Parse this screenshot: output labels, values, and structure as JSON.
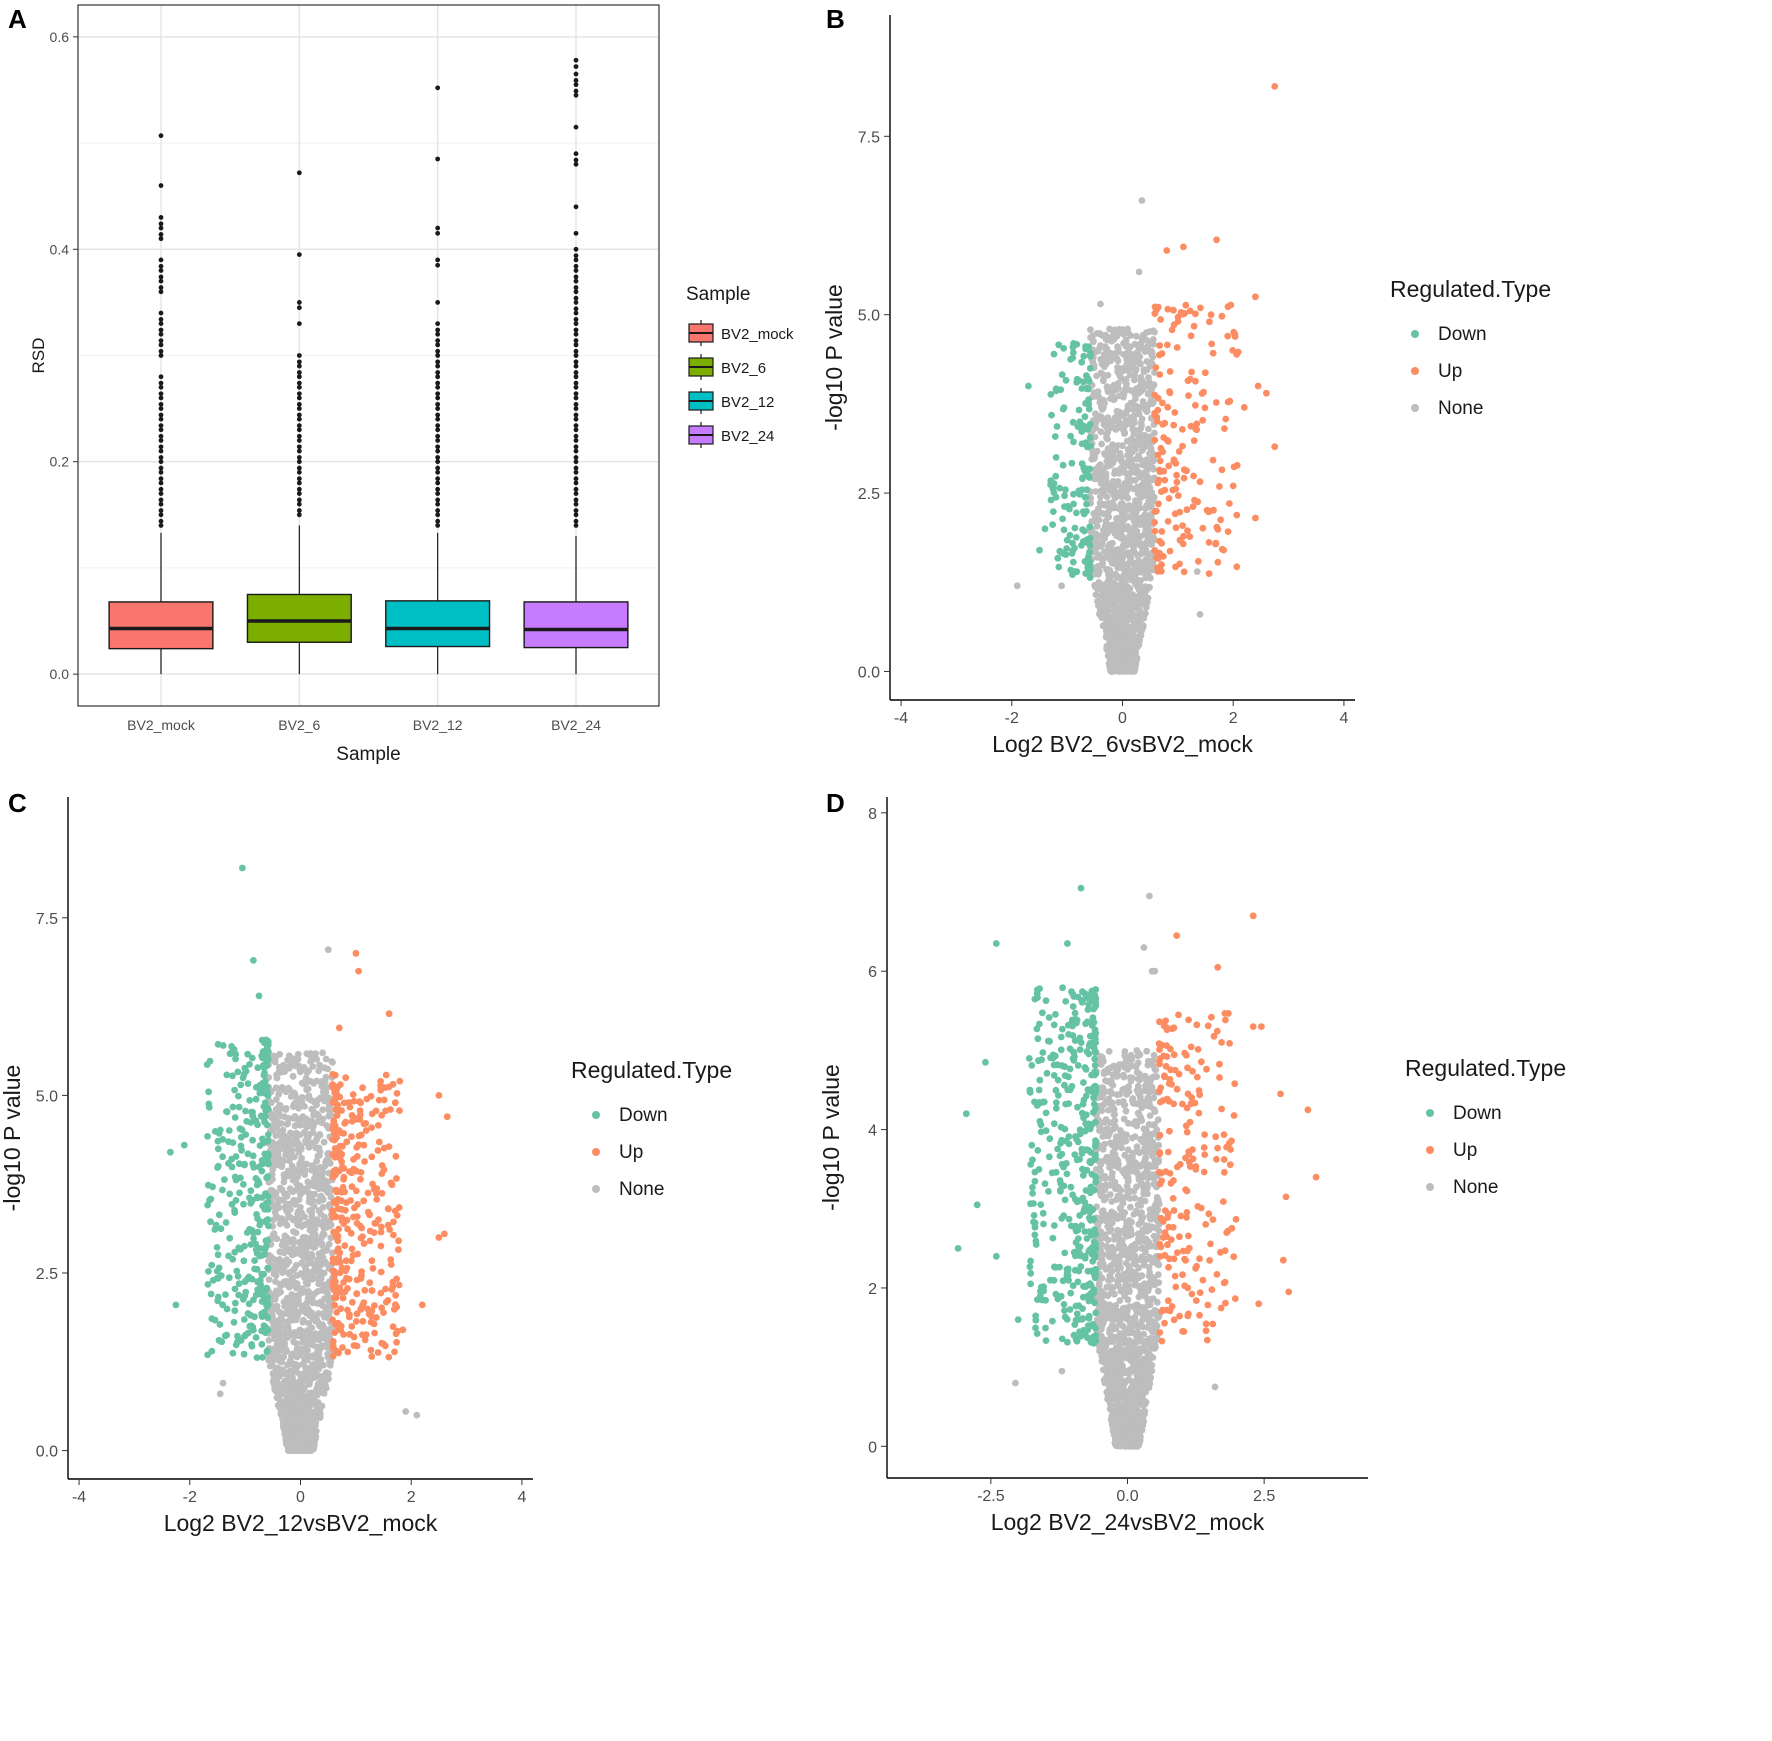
{
  "colors": {
    "down": "#66c2a5",
    "up": "#fc8d62",
    "none": "#bdbdbd",
    "BV2_mock": "#f8766d",
    "BV2_6": "#7cae00",
    "BV2_12": "#00bfc4",
    "BV2_24": "#c77cff"
  },
  "chart_data": [
    {
      "panel": "A",
      "type": "box",
      "xlabel": "Sample",
      "ylabel": "RSD",
      "categories": [
        "BV2_mock",
        "BV2_6",
        "BV2_12",
        "BV2_24"
      ],
      "ylim": [
        -0.03,
        0.63
      ],
      "yticks": [
        "0.0",
        "0.2",
        "0.4",
        "0.6"
      ],
      "grid": true,
      "legend": {
        "title": "Sample",
        "position": "right",
        "items": [
          "BV2_mock",
          "BV2_6",
          "BV2_12",
          "BV2_24"
        ]
      },
      "boxes": [
        {
          "name": "BV2_mock",
          "q1": 0.024,
          "median": 0.043,
          "q3": 0.068,
          "whisker_low": 0.0,
          "whisker_high": 0.133,
          "outliers": [
            0.14,
            0.15,
            0.16,
            0.17,
            0.18,
            0.19,
            0.2,
            0.21,
            0.22,
            0.23,
            0.24,
            0.25,
            0.26,
            0.27,
            0.28,
            0.3,
            0.31,
            0.32,
            0.33,
            0.34,
            0.36,
            0.37,
            0.38,
            0.39,
            0.41,
            0.42,
            0.43,
            0.46,
            0.507
          ]
        },
        {
          "name": "BV2_6",
          "q1": 0.03,
          "median": 0.05,
          "q3": 0.075,
          "whisker_low": 0.0,
          "whisker_high": 0.14,
          "outliers": [
            0.15,
            0.16,
            0.17,
            0.18,
            0.19,
            0.2,
            0.21,
            0.22,
            0.23,
            0.24,
            0.25,
            0.26,
            0.27,
            0.28,
            0.29,
            0.3,
            0.33,
            0.345,
            0.35,
            0.395,
            0.472
          ]
        },
        {
          "name": "BV2_12",
          "q1": 0.026,
          "median": 0.043,
          "q3": 0.069,
          "whisker_low": 0.0,
          "whisker_high": 0.133,
          "outliers": [
            0.14,
            0.15,
            0.16,
            0.17,
            0.18,
            0.19,
            0.2,
            0.21,
            0.22,
            0.23,
            0.24,
            0.25,
            0.26,
            0.27,
            0.28,
            0.29,
            0.3,
            0.31,
            0.32,
            0.33,
            0.35,
            0.385,
            0.39,
            0.415,
            0.42,
            0.485,
            0.552
          ]
        },
        {
          "name": "BV2_24",
          "q1": 0.025,
          "median": 0.042,
          "q3": 0.068,
          "whisker_low": 0.0,
          "whisker_high": 0.13,
          "outliers": [
            0.14,
            0.15,
            0.16,
            0.17,
            0.18,
            0.19,
            0.2,
            0.21,
            0.22,
            0.23,
            0.24,
            0.25,
            0.26,
            0.27,
            0.28,
            0.29,
            0.3,
            0.31,
            0.32,
            0.33,
            0.34,
            0.35,
            0.36,
            0.37,
            0.38,
            0.39,
            0.4,
            0.415,
            0.44,
            0.48,
            0.49,
            0.515,
            0.545,
            0.555,
            0.565,
            0.572,
            0.578
          ]
        }
      ]
    },
    {
      "panel": "B",
      "type": "scatter",
      "xlabel": "Log2 BV2_6vsBV2_mock",
      "ylabel": "-log10 P value",
      "xlim": [
        -4.2,
        4.2
      ],
      "ylim": [
        -0.4,
        9.2
      ],
      "xticks": [
        -4,
        -2,
        0,
        2,
        4
      ],
      "xtick_labels": [
        "-4",
        "-2",
        "0",
        "2",
        "4"
      ],
      "yticks": [
        0,
        2.5,
        5,
        7.5
      ],
      "ytick_labels": [
        "0.0",
        "2.5",
        "5.0",
        "7.5"
      ],
      "legend": {
        "title": "Regulated.Type",
        "position": "right",
        "items": [
          "Down",
          "Up",
          "None"
        ]
      },
      "cloud": {
        "seed": 11,
        "none_n": 1500,
        "none_xspread": 0.55,
        "none_ymax": 4.8,
        "threshold": 0.58,
        "down_n": 150,
        "down_xmax": 1.3,
        "down_ymax": 4.6,
        "up_n": 170,
        "up_xmax": 2.1,
        "up_ymax": 5.2
      },
      "series": [
        {
          "name": "Down",
          "points": [
            [
              -1.7,
              4.0
            ],
            [
              -1.4,
              2.0
            ],
            [
              -1.5,
              1.7
            ],
            [
              -1.2,
              3.0
            ]
          ]
        },
        {
          "name": "Up",
          "points": [
            [
              2.75,
              8.2
            ],
            [
              1.7,
              6.05
            ],
            [
              1.1,
              5.95
            ],
            [
              0.8,
              5.9
            ],
            [
              2.4,
              5.25
            ],
            [
              1.6,
              5.0
            ],
            [
              1.9,
              4.7
            ],
            [
              2.75,
              3.15
            ],
            [
              2.45,
              4.0
            ],
            [
              2.6,
              3.9
            ],
            [
              2.2,
              3.7
            ],
            [
              2.4,
              2.15
            ],
            [
              2.0,
              2.6
            ],
            [
              1.3,
              2.4
            ]
          ]
        },
        {
          "name": "None",
          "points": [
            [
              0.35,
              6.6
            ],
            [
              0.3,
              5.6
            ],
            [
              -0.4,
              5.15
            ],
            [
              1.4,
              0.8
            ],
            [
              1.35,
              1.4
            ],
            [
              -1.1,
              1.2
            ],
            [
              -1.9,
              1.2
            ]
          ]
        }
      ]
    },
    {
      "panel": "C",
      "type": "scatter",
      "xlabel": "Log2 BV2_12vsBV2_mock",
      "ylabel": "-log10 P value",
      "xlim": [
        -4.2,
        4.2
      ],
      "ylim": [
        -0.4,
        9.2
      ],
      "xticks": [
        -4,
        -2,
        0,
        2,
        4
      ],
      "xtick_labels": [
        "-4",
        "-2",
        "0",
        "2",
        "4"
      ],
      "yticks": [
        0,
        2.5,
        5,
        7.5
      ],
      "ytick_labels": [
        "0.0",
        "2.5",
        "5.0",
        "7.5"
      ],
      "legend": {
        "title": "Regulated.Type",
        "position": "right",
        "items": [
          "Down",
          "Up",
          "None"
        ]
      },
      "cloud": {
        "seed": 23,
        "none_n": 1600,
        "none_xspread": 0.6,
        "none_ymax": 5.6,
        "threshold": 0.58,
        "down_n": 320,
        "down_xmax": 1.7,
        "down_ymax": 5.8,
        "up_n": 340,
        "up_xmax": 1.8,
        "up_ymax": 5.3
      },
      "series": [
        {
          "name": "Down",
          "points": [
            [
              -1.05,
              8.2
            ],
            [
              -0.85,
              6.9
            ],
            [
              -0.75,
              6.4
            ],
            [
              -2.35,
              4.2
            ],
            [
              -2.1,
              4.3
            ],
            [
              -2.25,
              2.05
            ],
            [
              -1.6,
              1.4
            ]
          ]
        },
        {
          "name": "Up",
          "points": [
            [
              1.0,
              7.0
            ],
            [
              1.05,
              6.75
            ],
            [
              1.6,
              6.15
            ],
            [
              0.7,
              5.95
            ],
            [
              2.5,
              5.0
            ],
            [
              2.65,
              4.7
            ],
            [
              2.6,
              3.05
            ],
            [
              2.5,
              3.0
            ],
            [
              2.2,
              2.05
            ],
            [
              1.85,
              1.7
            ],
            [
              1.5,
              1.5
            ]
          ]
        },
        {
          "name": "None",
          "points": [
            [
              0.5,
              7.05
            ],
            [
              0.4,
              5.6
            ],
            [
              0.35,
              5.4
            ],
            [
              -1.4,
              0.95
            ],
            [
              -1.45,
              0.8
            ],
            [
              1.9,
              0.55
            ],
            [
              2.1,
              0.5
            ]
          ]
        }
      ]
    },
    {
      "panel": "D",
      "type": "scatter",
      "xlabel": "Log2 BV2_24vsBV2_mock",
      "ylabel": "-log10 P value",
      "xlim": [
        -4.4,
        4.4
      ],
      "ylim": [
        -0.4,
        8.2
      ],
      "xticks": [
        -2.5,
        0,
        2.5
      ],
      "xtick_labels": [
        "-2.5",
        "0.0",
        "2.5"
      ],
      "yticks": [
        0,
        2,
        4,
        6,
        8
      ],
      "ytick_labels": [
        "0",
        "2",
        "4",
        "6",
        "8"
      ],
      "legend": {
        "title": "Regulated.Type",
        "position": "right",
        "items": [
          "Down",
          "Up",
          "None"
        ]
      },
      "cloud": {
        "seed": 37,
        "none_n": 1600,
        "none_xspread": 0.55,
        "none_ymax": 5.0,
        "threshold": 0.58,
        "down_n": 420,
        "down_xmax": 1.8,
        "down_ymax": 5.8,
        "up_n": 200,
        "up_xmax": 2.0,
        "up_ymax": 5.5
      },
      "series": [
        {
          "name": "Down",
          "points": [
            [
              -0.85,
              7.05
            ],
            [
              -2.4,
              6.35
            ],
            [
              -1.1,
              6.35
            ],
            [
              -2.6,
              4.85
            ],
            [
              -2.95,
              4.2
            ],
            [
              -2.75,
              3.05
            ],
            [
              -3.1,
              2.5
            ],
            [
              -2.4,
              2.4
            ],
            [
              -2.0,
              1.6
            ]
          ]
        },
        {
          "name": "Up",
          "points": [
            [
              2.3,
              6.7
            ],
            [
              0.9,
              6.45
            ],
            [
              1.65,
              6.05
            ],
            [
              2.45,
              5.3
            ],
            [
              2.3,
              5.3
            ],
            [
              3.3,
              4.25
            ],
            [
              2.8,
              4.45
            ],
            [
              3.45,
              3.4
            ],
            [
              2.9,
              3.15
            ],
            [
              2.85,
              2.35
            ],
            [
              2.95,
              1.95
            ],
            [
              2.4,
              1.8
            ],
            [
              1.7,
              2.45
            ]
          ]
        },
        {
          "name": "None",
          "points": [
            [
              0.4,
              6.95
            ],
            [
              0.5,
              6.0
            ],
            [
              0.45,
              6.0
            ],
            [
              0.3,
              6.3
            ],
            [
              1.6,
              0.75
            ],
            [
              -2.05,
              0.8
            ],
            [
              -1.2,
              0.95
            ]
          ]
        }
      ]
    }
  ]
}
